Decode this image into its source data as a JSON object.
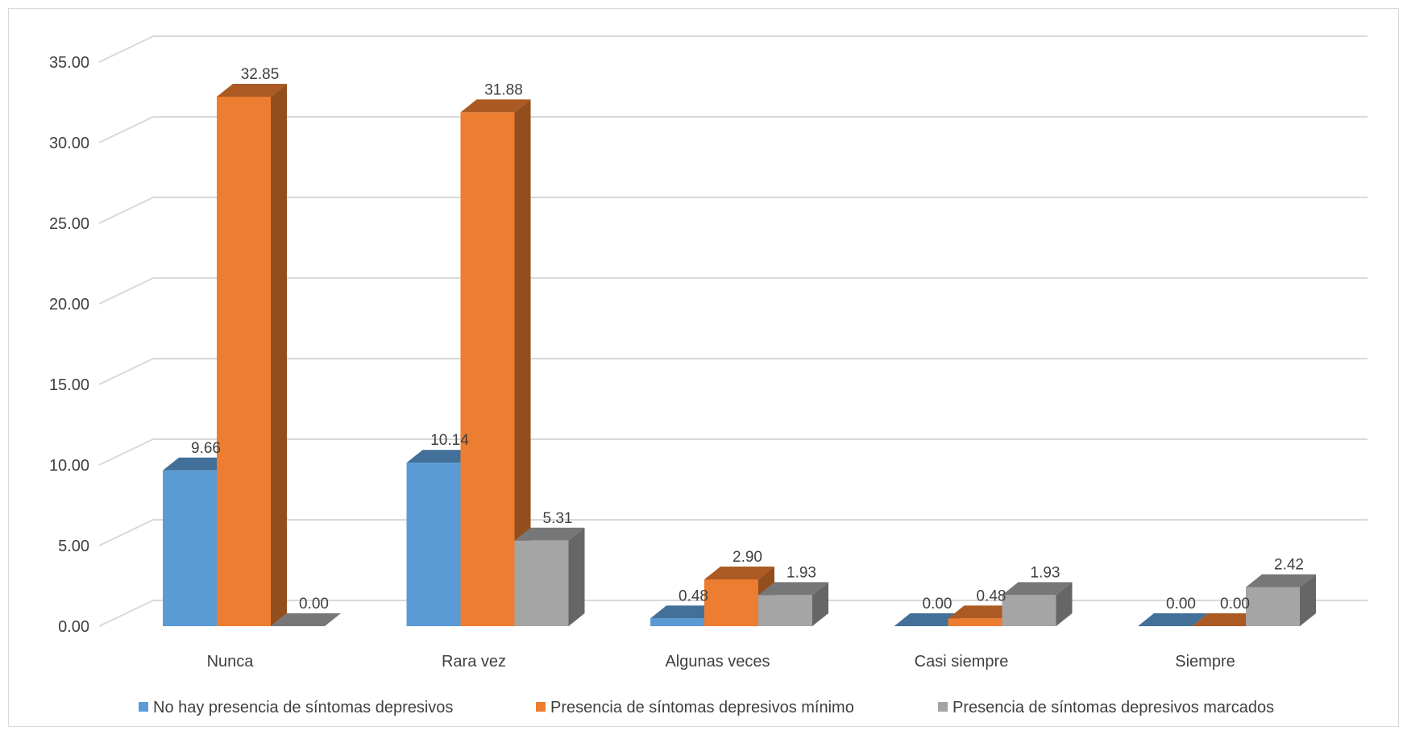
{
  "chart_data": {
    "type": "bar",
    "title": "",
    "xlabel": "",
    "ylabel": "",
    "ylim": [
      0,
      35
    ],
    "ytick_step": 5,
    "ytick_labels": [
      "0.00",
      "5.00",
      "10.00",
      "15.00",
      "20.00",
      "25.00",
      "30.00",
      "35.00"
    ],
    "grid": true,
    "three_d": true,
    "legend_position": "bottom",
    "categories": [
      "Nunca",
      "Rara vez",
      "Algunas veces",
      "Casi siempre",
      "Siempre"
    ],
    "series": [
      {
        "name": "No hay presencia de síntomas depresivos",
        "color": "#5b9bd5",
        "values": [
          9.66,
          10.14,
          0.48,
          0.0,
          0.0
        ],
        "labels": [
          "9.66",
          "10.14",
          "0.48",
          "0.00",
          "0.00"
        ]
      },
      {
        "name": "Presencia de síntomas depresivos mínimo",
        "color": "#ed7d31",
        "values": [
          32.85,
          31.88,
          2.9,
          0.48,
          0.0
        ],
        "labels": [
          "32.85",
          "31.88",
          "2.90",
          "0.48",
          "0.00"
        ]
      },
      {
        "name": "Presencia de síntomas depresivos marcados",
        "color": "#a5a5a5",
        "values": [
          0.0,
          5.31,
          1.93,
          1.93,
          2.42
        ],
        "labels": [
          "0.00",
          "5.31",
          "1.93",
          "1.93",
          "2.42"
        ]
      }
    ]
  }
}
